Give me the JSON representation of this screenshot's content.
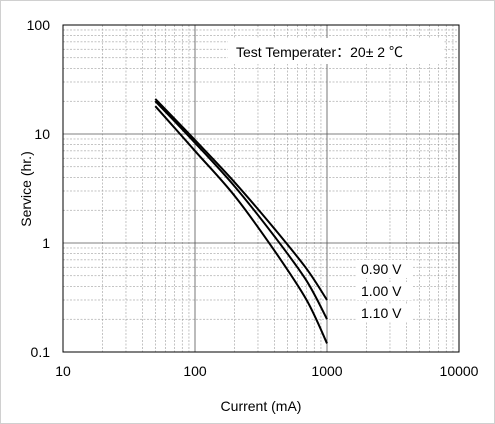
{
  "chart_data": {
    "type": "line",
    "title": "",
    "xlabel": "Current (mA)",
    "ylabel": "Service (hr.)",
    "xscale": "log",
    "yscale": "log",
    "xlim": [
      10,
      10000
    ],
    "ylim": [
      0.1,
      100
    ],
    "x_ticks": [
      "10",
      "100",
      "1000",
      "10000"
    ],
    "y_ticks": [
      "0.1",
      "1",
      "10",
      "100"
    ],
    "grid": true,
    "annotation": "Test Temperater：20± 2 ℃",
    "series": [
      {
        "name": "0.90 V",
        "x": [
          50,
          100,
          200,
          400,
          700,
          1000
        ],
        "y": [
          21,
          8.8,
          3.6,
          1.35,
          0.58,
          0.3
        ]
      },
      {
        "name": "1.00 V",
        "x": [
          50,
          100,
          200,
          400,
          700,
          1000
        ],
        "y": [
          20,
          8.3,
          3.3,
          1.15,
          0.45,
          0.2
        ]
      },
      {
        "name": "1.10 V",
        "x": [
          50,
          100,
          200,
          400,
          700,
          1000
        ],
        "y": [
          18,
          7.0,
          2.7,
          0.85,
          0.3,
          0.12
        ]
      }
    ]
  }
}
